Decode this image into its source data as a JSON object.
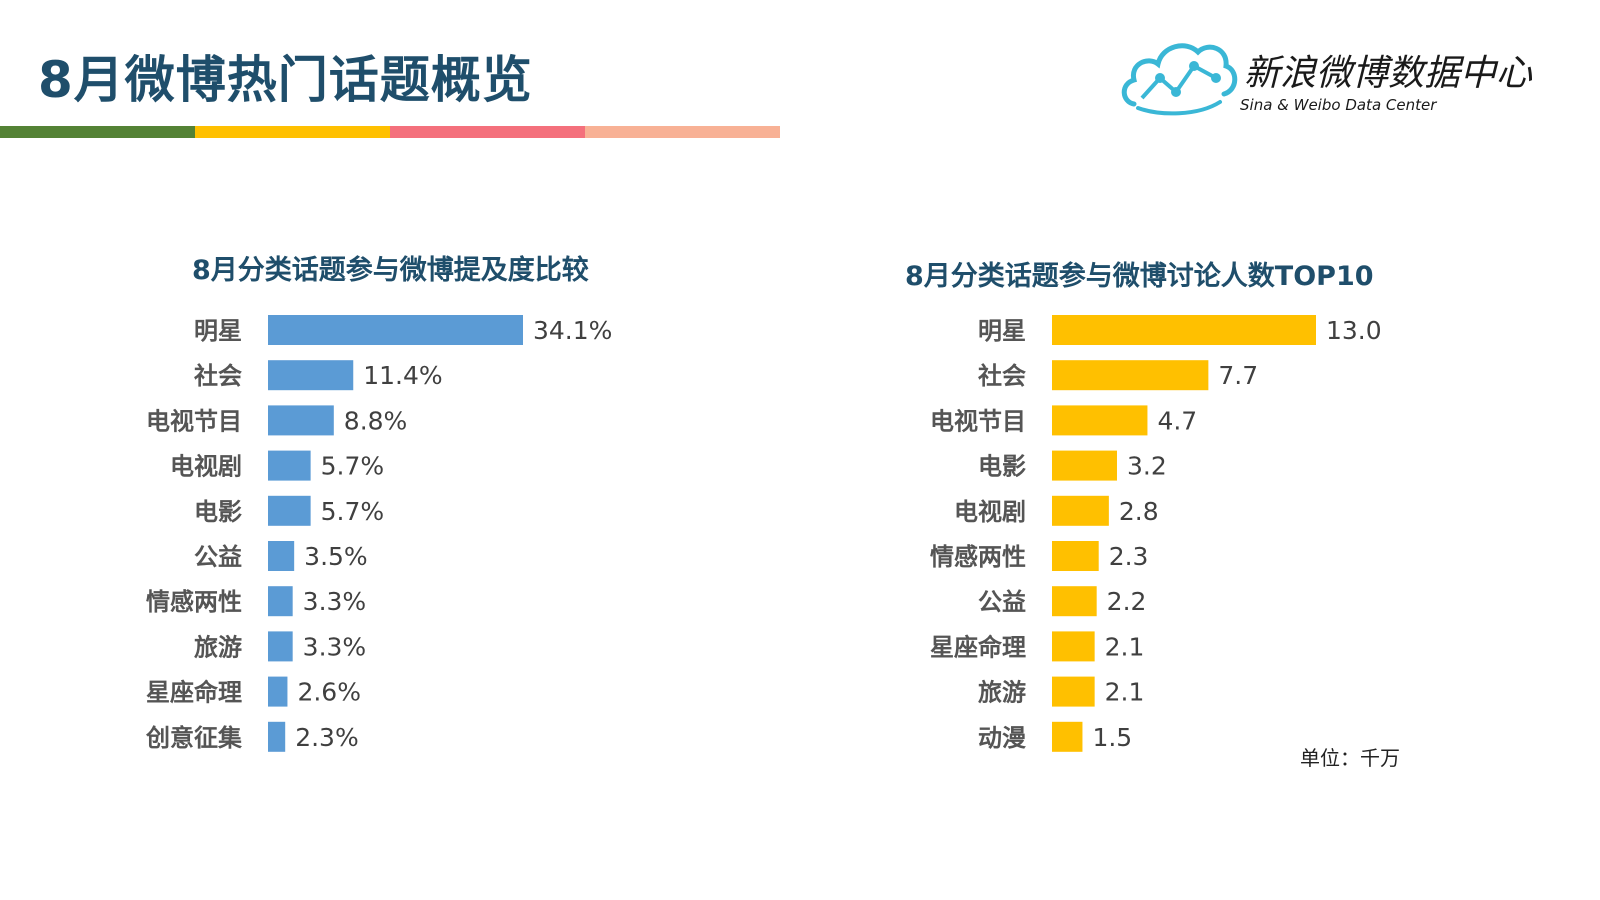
{
  "page": {
    "title": "8月微博热门话题概览",
    "stripe_colors": [
      "#548235",
      "#ffc000",
      "#f4707c",
      "#f8b195"
    ]
  },
  "logo": {
    "name": "新浪微博数据中心",
    "subtitle": "Sina & Weibo Data Center",
    "icon": "cloud-chart-icon",
    "color": "#3ab7d6"
  },
  "unit_note": "单位：千万",
  "chart_data": [
    {
      "type": "bar",
      "orientation": "horizontal",
      "title": "8月分类话题参与微博提及度比较",
      "color": "#5b9bd5",
      "categories": [
        "明星",
        "社会",
        "电视节目",
        "电视剧",
        "电影",
        "公益",
        "情感两性",
        "旅游",
        "星座命理",
        "创意征集"
      ],
      "values": [
        34.1,
        11.4,
        8.8,
        5.7,
        5.7,
        3.5,
        3.3,
        3.3,
        2.6,
        2.3
      ],
      "labels": [
        "34.1%",
        "11.4%",
        "8.8%",
        "5.7%",
        "5.7%",
        "3.5%",
        "3.3%",
        "3.3%",
        "2.6%",
        "2.3%"
      ],
      "xlabel": "",
      "ylabel": "",
      "xlim": [
        0,
        34.1
      ],
      "grid": false,
      "legend": "none"
    },
    {
      "type": "bar",
      "orientation": "horizontal",
      "title": "8月分类话题参与微博讨论人数TOP10",
      "color": "#ffc000",
      "categories": [
        "明星",
        "社会",
        "电视节目",
        "电影",
        "电视剧",
        "情感两性",
        "公益",
        "星座命理",
        "旅游",
        "动漫"
      ],
      "values": [
        13.0,
        7.7,
        4.7,
        3.2,
        2.8,
        2.3,
        2.2,
        2.1,
        2.1,
        1.5
      ],
      "labels": [
        "13.0",
        "7.7",
        "4.7",
        "3.2",
        "2.8",
        "2.3",
        "2.2",
        "2.1",
        "2.1",
        "1.5"
      ],
      "xlabel": "",
      "ylabel": "",
      "xlim": [
        0,
        13.0
      ],
      "grid": false,
      "legend": "none"
    }
  ]
}
